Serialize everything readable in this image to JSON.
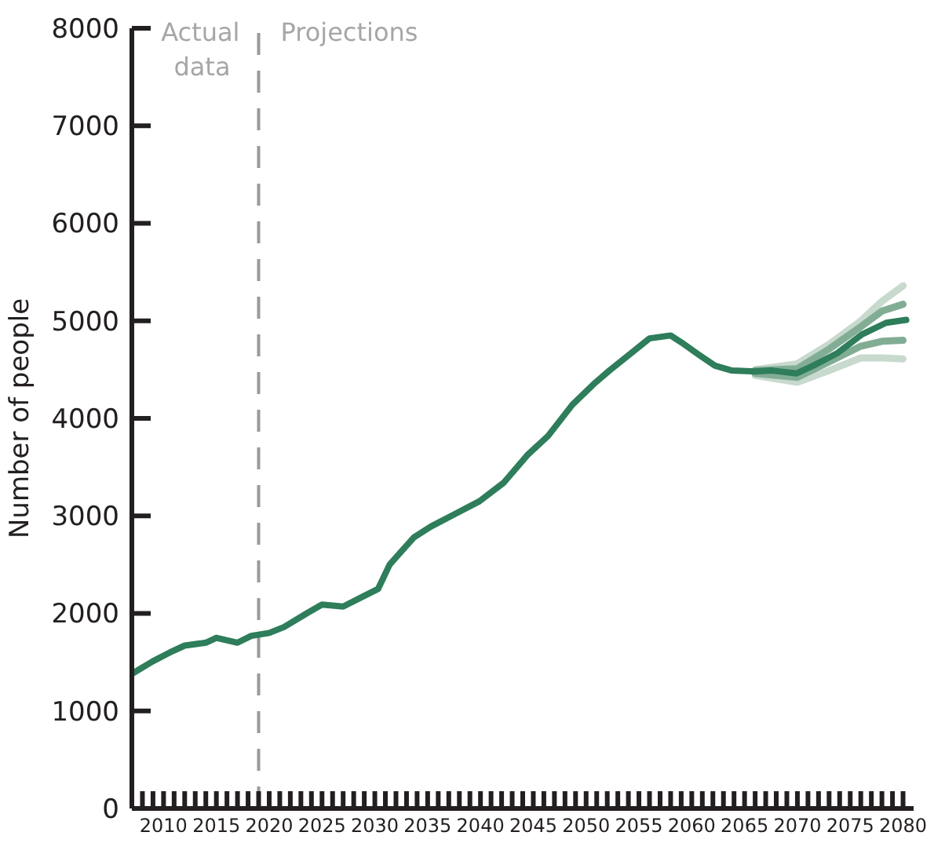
{
  "chart_data": {
    "type": "line",
    "ylabel": "Number of people",
    "xlim": [
      2007,
      2081
    ],
    "ylim": [
      0,
      8000
    ],
    "yticks": [
      0,
      1000,
      2000,
      3000,
      4000,
      5000,
      6000,
      7000,
      8000
    ],
    "xticks": [
      {
        "value": 2008,
        "label": null
      },
      {
        "value": 2009,
        "label": null
      },
      2010,
      {
        "value": 2011,
        "label": null
      },
      {
        "value": 2012,
        "label": null
      },
      {
        "value": 2013,
        "label": null
      },
      {
        "value": 2014,
        "label": null
      },
      2015,
      {
        "value": 2016,
        "label": null
      },
      {
        "value": 2017,
        "label": null
      },
      {
        "value": 2018,
        "label": null
      },
      {
        "value": 2019,
        "label": null
      },
      2020,
      {
        "value": 2021,
        "label": null
      },
      {
        "value": 2022,
        "label": null
      },
      {
        "value": 2023,
        "label": null
      },
      {
        "value": 2024,
        "label": null
      },
      2025,
      {
        "value": 2026,
        "label": null
      },
      {
        "value": 2027,
        "label": null
      },
      {
        "value": 2028,
        "label": null
      },
      {
        "value": 2029,
        "label": null
      },
      2030,
      {
        "value": 2031,
        "label": null
      },
      {
        "value": 2032,
        "label": null
      },
      {
        "value": 2033,
        "label": null
      },
      {
        "value": 2034,
        "label": null
      },
      2035,
      {
        "value": 2036,
        "label": null
      },
      {
        "value": 2037,
        "label": null
      },
      {
        "value": 2038,
        "label": null
      },
      {
        "value": 2039,
        "label": null
      },
      2040,
      {
        "value": 2041,
        "label": null
      },
      {
        "value": 2042,
        "label": null
      },
      {
        "value": 2043,
        "label": null
      },
      {
        "value": 2044,
        "label": null
      },
      2045,
      {
        "value": 2046,
        "label": null
      },
      {
        "value": 2047,
        "label": null
      },
      {
        "value": 2048,
        "label": null
      },
      {
        "value": 2049,
        "label": null
      },
      2050,
      {
        "value": 2051,
        "label": null
      },
      {
        "value": 2052,
        "label": null
      },
      {
        "value": 2053,
        "label": null
      },
      {
        "value": 2054,
        "label": null
      },
      2055,
      {
        "value": 2056,
        "label": null
      },
      {
        "value": 2057,
        "label": null
      },
      {
        "value": 2058,
        "label": null
      },
      {
        "value": 2059,
        "label": null
      },
      2060,
      {
        "value": 2061,
        "label": null
      },
      {
        "value": 2062,
        "label": null
      },
      {
        "value": 2063,
        "label": null
      },
      {
        "value": 2064,
        "label": null
      },
      2065,
      {
        "value": 2066,
        "label": null
      },
      {
        "value": 2067,
        "label": null
      },
      {
        "value": 2068,
        "label": null
      },
      {
        "value": 2069,
        "label": null
      },
      2070,
      {
        "value": 2071,
        "label": null
      },
      {
        "value": 2072,
        "label": null
      },
      {
        "value": 2073,
        "label": null
      },
      {
        "value": 2074,
        "label": null
      },
      2075,
      {
        "value": 2076,
        "label": null
      },
      {
        "value": 2077,
        "label": null
      },
      {
        "value": 2078,
        "label": null
      },
      {
        "value": 2079,
        "label": null
      },
      2080
    ],
    "marker": "none",
    "line_style": "solid",
    "ref_lines": [
      {
        "axis": "x",
        "value": 2019,
        "color": "#9a9a9a",
        "line_style": "dashed"
      }
    ],
    "annotations": [
      "Actual data",
      "Projections"
    ],
    "series": [
      {
        "color": "#c8d9ce",
        "x": [
          2066,
          2070,
          2073,
          2076,
          2078,
          2080
        ],
        "values": [
          4500,
          4560,
          4760,
          5000,
          5200,
          5360
        ]
      },
      {
        "color": "#c8d9ce",
        "x": [
          2066,
          2070,
          2073,
          2076,
          2078,
          2080
        ],
        "values": [
          4440,
          4370,
          4490,
          4620,
          4620,
          4610
        ]
      },
      {
        "color": "#82ad95",
        "x": [
          2066,
          2070,
          2073,
          2076,
          2078,
          2080
        ],
        "values": [
          4490,
          4510,
          4710,
          4940,
          5100,
          5170
        ]
      },
      {
        "color": "#82ad95",
        "x": [
          2066,
          2070,
          2073,
          2076,
          2078,
          2080
        ],
        "values": [
          4460,
          4420,
          4580,
          4740,
          4790,
          4800
        ]
      },
      {
        "color": "#2e7d5b",
        "x": [
          2007,
          2009,
          2010.6,
          2012,
          2014,
          2015,
          2017,
          2018.3,
          2020,
          2021.4,
          2023.7,
          2025,
          2027,
          2029,
          2030.3,
          2031.4,
          2033.7,
          2035.3,
          2037.6,
          2039.9,
          2042.2,
          2044.5,
          2046.4,
          2048.7,
          2050.7,
          2052.2,
          2054.5,
          2056,
          2058,
          2059,
          2060.7,
          2062.2,
          2063.8,
          2066,
          2067.6,
          2069.9,
          2071.5,
          2073.8,
          2076.1,
          2078.4,
          2080.3
        ],
        "values": [
          1380,
          1510,
          1600,
          1670,
          1700,
          1750,
          1700,
          1770,
          1800,
          1860,
          2010,
          2090,
          2070,
          2180,
          2250,
          2500,
          2780,
          2890,
          3020,
          3150,
          3340,
          3630,
          3820,
          4140,
          4350,
          4490,
          4690,
          4820,
          4850,
          4780,
          4650,
          4540,
          4490,
          4480,
          4490,
          4460,
          4540,
          4670,
          4860,
          4980,
          5010
        ]
      }
    ]
  }
}
